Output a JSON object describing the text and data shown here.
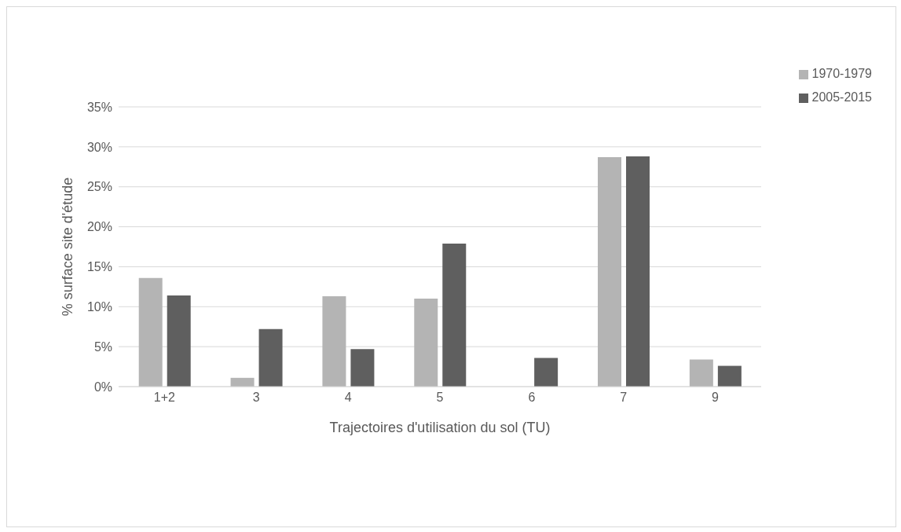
{
  "chart_data": {
    "type": "bar",
    "xlabel": "Trajectoires d'utilisation du sol (TU)",
    "ylabel": "% surface site d'étude",
    "categories": [
      "1+2",
      "3",
      "4",
      "5",
      "6",
      "7",
      "9"
    ],
    "series": [
      {
        "name": "1970-1979",
        "color": "#b4b4b4",
        "values": [
          13.6,
          1.1,
          11.3,
          11.0,
          null,
          28.7,
          3.4
        ]
      },
      {
        "name": "2005-2015",
        "color": "#5f5f5f",
        "values": [
          11.4,
          7.2,
          4.7,
          17.9,
          3.6,
          28.8,
          2.6
        ]
      }
    ],
    "ylim": [
      0,
      35
    ],
    "yticks": [
      {
        "value": 0,
        "label": "0%"
      },
      {
        "value": 5,
        "label": "5%"
      },
      {
        "value": 10,
        "label": "10%"
      },
      {
        "value": 15,
        "label": "15%"
      },
      {
        "value": 20,
        "label": "20%"
      },
      {
        "value": 25,
        "label": "25%"
      },
      {
        "value": 30,
        "label": "30%"
      },
      {
        "value": 35,
        "label": "35%"
      }
    ],
    "grid": "y",
    "legend": "top right"
  }
}
